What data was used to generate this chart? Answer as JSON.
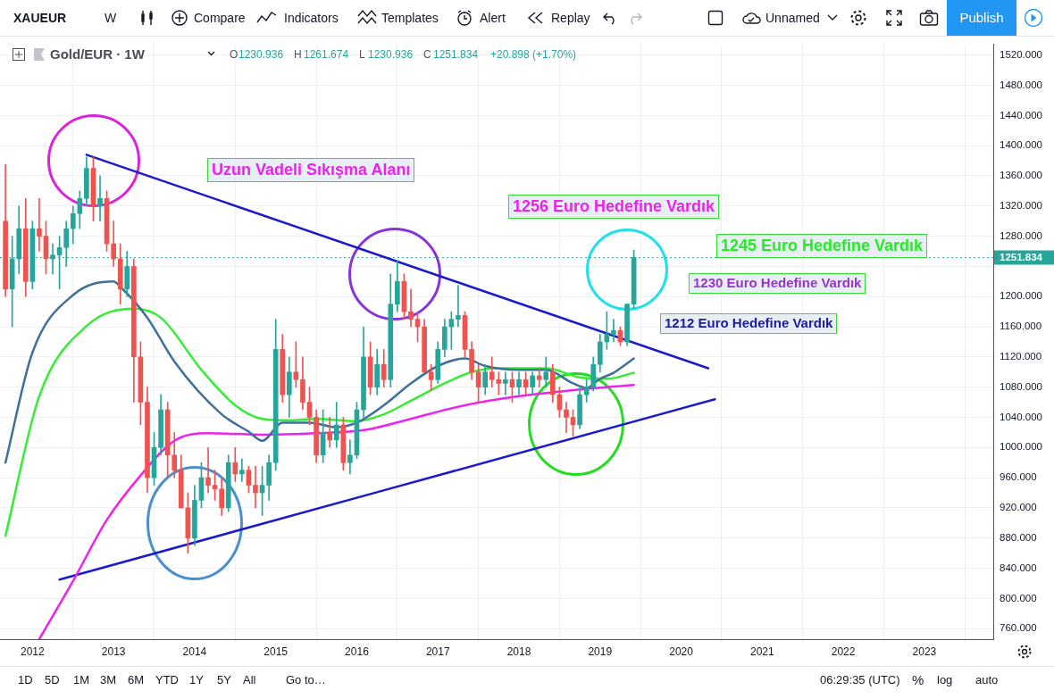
{
  "chart_data": {
    "type": "candlestick",
    "annotations": [
      "XAUEUR",
      "W",
      "Compare",
      "Indicators",
      "Templates",
      "Alert",
      "Replay",
      "Unnamed",
      "Publish",
      "Gold/EUR · 1W",
      "O",
      "1230.936",
      "H",
      "1261.674",
      "L",
      "1230.936",
      "C",
      "1251.834",
      "+20.898 (+1.70%)",
      "Uzun Vadeli Sıkışma Alanı",
      "1256 Euro Hedefine Vardık",
      "1245 Euro Hedefine Vardık",
      "1230 Euro Hedefine Vardık",
      "1212 Euro Hedefine Vardık",
      "1D",
      "5D",
      "1M",
      "3M",
      "6M",
      "YTD",
      "1Y",
      "5Y",
      "All",
      "Go to…",
      "06:29:35 (UTC)",
      "%",
      "log",
      "auto"
    ],
    "x": [
      "2011-09",
      "2011-10",
      "2011-11",
      "2011-12",
      "2012-01",
      "2012-02",
      "2012-03",
      "2012-04",
      "2012-05",
      "2012-06",
      "2012-07",
      "2012-08",
      "2012-09",
      "2012-10",
      "2012-11",
      "2012-12",
      "2013-01",
      "2013-02",
      "2013-03",
      "2013-04",
      "2013-05",
      "2013-06",
      "2013-07",
      "2013-08",
      "2013-09",
      "2013-10",
      "2013-11",
      "2013-12",
      "2014-01",
      "2014-02",
      "2014-03",
      "2014-04",
      "2014-05",
      "2014-06",
      "2014-07",
      "2014-08",
      "2014-09",
      "2014-10",
      "2014-11",
      "2014-12",
      "2015-01",
      "2015-02",
      "2015-03",
      "2015-04",
      "2015-05",
      "2015-06",
      "2015-07",
      "2015-08",
      "2015-09",
      "2015-10",
      "2015-11",
      "2015-12",
      "2016-01",
      "2016-02",
      "2016-03",
      "2016-04",
      "2016-05",
      "2016-06",
      "2016-07",
      "2016-08",
      "2016-09",
      "2016-10",
      "2016-11",
      "2016-12",
      "2017-01",
      "2017-02",
      "2017-03",
      "2017-04",
      "2017-05",
      "2017-06",
      "2017-07",
      "2017-08",
      "2017-09",
      "2017-10",
      "2017-11",
      "2017-12",
      "2018-01",
      "2018-02",
      "2018-03",
      "2018-04",
      "2018-05",
      "2018-06",
      "2018-07",
      "2018-08",
      "2018-09",
      "2018-10",
      "2018-11",
      "2018-12",
      "2019-01",
      "2019-02",
      "2019-03",
      "2019-04",
      "2019-05",
      "2019-06"
    ],
    "ohlc": [
      [
        1300,
        1375,
        1200,
        1210
      ],
      [
        1210,
        1280,
        1160,
        1250
      ],
      [
        1250,
        1320,
        1230,
        1290
      ],
      [
        1290,
        1330,
        1200,
        1220
      ],
      [
        1220,
        1300,
        1210,
        1290
      ],
      [
        1290,
        1330,
        1260,
        1280
      ],
      [
        1280,
        1300,
        1230,
        1250
      ],
      [
        1250,
        1270,
        1230,
        1255
      ],
      [
        1255,
        1280,
        1210,
        1265
      ],
      [
        1265,
        1300,
        1240,
        1290
      ],
      [
        1290,
        1320,
        1270,
        1310
      ],
      [
        1310,
        1340,
        1290,
        1330
      ],
      [
        1330,
        1385,
        1320,
        1370
      ],
      [
        1370,
        1385,
        1300,
        1320
      ],
      [
        1320,
        1360,
        1300,
        1330
      ],
      [
        1330,
        1340,
        1260,
        1270
      ],
      [
        1270,
        1300,
        1240,
        1250
      ],
      [
        1250,
        1270,
        1190,
        1210
      ],
      [
        1210,
        1260,
        1200,
        1240
      ],
      [
        1240,
        1250,
        1060,
        1120
      ],
      [
        1120,
        1140,
        1030,
        1060
      ],
      [
        1060,
        1080,
        940,
        960
      ],
      [
        960,
        1020,
        950,
        1000
      ],
      [
        1000,
        1070,
        990,
        1050
      ],
      [
        1050,
        1060,
        960,
        990
      ],
      [
        990,
        1020,
        960,
        970
      ],
      [
        970,
        990,
        920,
        920
      ],
      [
        920,
        940,
        860,
        880
      ],
      [
        880,
        950,
        870,
        930
      ],
      [
        930,
        980,
        920,
        960
      ],
      [
        960,
        1000,
        940,
        950
      ],
      [
        950,
        970,
        930,
        945
      ],
      [
        945,
        960,
        910,
        920
      ],
      [
        920,
        990,
        915,
        980
      ],
      [
        980,
        1000,
        955,
        965
      ],
      [
        965,
        985,
        955,
        970
      ],
      [
        970,
        975,
        940,
        950
      ],
      [
        950,
        975,
        920,
        940
      ],
      [
        940,
        975,
        910,
        950
      ],
      [
        950,
        990,
        930,
        980
      ],
      [
        980,
        1170,
        970,
        1130
      ],
      [
        1130,
        1150,
        1060,
        1070
      ],
      [
        1070,
        1120,
        1040,
        1100
      ],
      [
        1100,
        1140,
        1080,
        1090
      ],
      [
        1090,
        1120,
        1050,
        1060
      ],
      [
        1060,
        1080,
        1030,
        1040
      ],
      [
        1040,
        1050,
        980,
        990
      ],
      [
        990,
        1050,
        980,
        1020
      ],
      [
        1020,
        1040,
        1000,
        1010
      ],
      [
        1010,
        1060,
        1000,
        1030
      ],
      [
        1030,
        1040,
        970,
        980
      ],
      [
        980,
        1010,
        965,
        990
      ],
      [
        990,
        1060,
        985,
        1050
      ],
      [
        1050,
        1160,
        1040,
        1120
      ],
      [
        1120,
        1140,
        1070,
        1080
      ],
      [
        1080,
        1130,
        1070,
        1110
      ],
      [
        1110,
        1130,
        1080,
        1090
      ],
      [
        1090,
        1230,
        1080,
        1190
      ],
      [
        1190,
        1248,
        1180,
        1220
      ],
      [
        1220,
        1230,
        1170,
        1180
      ],
      [
        1180,
        1210,
        1160,
        1170
      ],
      [
        1170,
        1180,
        1140,
        1160
      ],
      [
        1160,
        1170,
        1100,
        1100
      ],
      [
        1100,
        1110,
        1075,
        1090
      ],
      [
        1090,
        1140,
        1085,
        1130
      ],
      [
        1130,
        1170,
        1120,
        1160
      ],
      [
        1160,
        1180,
        1130,
        1170
      ],
      [
        1170,
        1215,
        1160,
        1175
      ],
      [
        1175,
        1180,
        1120,
        1130
      ],
      [
        1130,
        1140,
        1090,
        1100
      ],
      [
        1100,
        1110,
        1060,
        1080
      ],
      [
        1080,
        1110,
        1070,
        1100
      ],
      [
        1100,
        1120,
        1080,
        1090
      ],
      [
        1090,
        1100,
        1070,
        1085
      ],
      [
        1085,
        1100,
        1070,
        1090
      ],
      [
        1090,
        1100,
        1060,
        1080
      ],
      [
        1080,
        1100,
        1070,
        1090
      ],
      [
        1090,
        1100,
        1070,
        1080
      ],
      [
        1080,
        1100,
        1070,
        1095
      ],
      [
        1095,
        1105,
        1080,
        1090
      ],
      [
        1090,
        1120,
        1080,
        1100
      ],
      [
        1100,
        1110,
        1060,
        1070
      ],
      [
        1070,
        1080,
        1040,
        1050
      ],
      [
        1050,
        1060,
        1020,
        1040
      ],
      [
        1040,
        1050,
        1015,
        1030
      ],
      [
        1030,
        1080,
        1025,
        1070
      ],
      [
        1070,
        1090,
        1060,
        1080
      ],
      [
        1080,
        1120,
        1075,
        1110
      ],
      [
        1110,
        1150,
        1100,
        1140
      ],
      [
        1140,
        1180,
        1130,
        1150
      ],
      [
        1150,
        1170,
        1140,
        1155
      ],
      [
        1155,
        1160,
        1135,
        1140
      ],
      [
        1140,
        1190,
        1135,
        1190
      ],
      [
        1190,
        1261.674,
        1185,
        1251.834
      ]
    ],
    "colors": [
      "#ef5350",
      "#26a69a",
      "#26a69a",
      "#ef5350",
      "#26a69a",
      "#ef5350",
      "#ef5350",
      "#26a69a",
      "#26a69a",
      "#26a69a",
      "#26a69a",
      "#26a69a",
      "#26a69a",
      "#ef5350",
      "#26a69a",
      "#ef5350",
      "#ef5350",
      "#ef5350",
      "#26a69a",
      "#ef5350",
      "#ef5350",
      "#ef5350",
      "#26a69a",
      "#26a69a",
      "#ef5350",
      "#ef5350",
      "#ef5350",
      "#ef5350",
      "#26a69a",
      "#26a69a",
      "#ef5350",
      "#ef5350",
      "#ef5350",
      "#26a69a",
      "#ef5350",
      "#26a69a",
      "#ef5350",
      "#ef5350",
      "#26a69a",
      "#26a69a",
      "#26a69a",
      "#ef5350",
      "#26a69a",
      "#ef5350",
      "#ef5350",
      "#ef5350",
      "#ef5350",
      "#26a69a",
      "#ef5350",
      "#26a69a",
      "#ef5350",
      "#26a69a",
      "#26a69a",
      "#26a69a",
      "#ef5350",
      "#26a69a",
      "#ef5350",
      "#26a69a",
      "#26a69a",
      "#ef5350",
      "#ef5350",
      "#ef5350",
      "#ef5350",
      "#ef5350",
      "#26a69a",
      "#26a69a",
      "#26a69a",
      "#26a69a",
      "#ef5350",
      "#ef5350",
      "#ef5350",
      "#26a69a",
      "#ef5350",
      "#ef5350",
      "#26a69a",
      "#ef5350",
      "#26a69a",
      "#ef5350",
      "#26a69a",
      "#ef5350",
      "#26a69a",
      "#ef5350",
      "#ef5350",
      "#ef5350",
      "#ef5350",
      "#26a69a",
      "#26a69a",
      "#26a69a",
      "#26a69a",
      "#26a69a",
      "#26a69a",
      "#ef5350",
      "#26a69a",
      "#26a69a"
    ],
    "series": [
      {
        "type": "line",
        "color": "#3f7099",
        "x": [
          "2011-09",
          "2012-01",
          "2012-07",
          "2013-01",
          "2013-02",
          "2013-06",
          "2013-10",
          "2014-05",
          "2014-09",
          "2014-11",
          "2015-02",
          "2015-06",
          "2015-10",
          "2016-01",
          "2016-05",
          "2016-09",
          "2017-01",
          "2017-05",
          "2017-08",
          "2018-01",
          "2018-05",
          "2018-09",
          "2018-11",
          "2019-01",
          "2019-03",
          "2019-04",
          "2019-06"
        ],
        "values": [
          980,
          1126,
          1202,
          1220,
          1213,
          1172,
          1114,
          1044,
          1021,
          1009,
          1033,
          1033,
          1027,
          1033,
          1056,
          1085,
          1108,
          1118,
          1108,
          1103,
          1103,
          1085,
          1079,
          1091,
          1099,
          1105,
          1118
        ]
      },
      {
        "type": "line",
        "color": "#33ee33",
        "x": [
          "2011-09",
          "2012-02",
          "2012-09",
          "2013-04",
          "2013-08",
          "2014-02",
          "2014-07",
          "2014-11",
          "2015-03",
          "2015-07",
          "2016-01",
          "2016-05",
          "2016-09",
          "2017-02",
          "2017-06",
          "2017-10",
          "2018-05",
          "2018-10",
          "2019-02",
          "2019-06"
        ],
        "values": [
          883,
          1068,
          1161,
          1184,
          1172,
          1103,
          1056,
          1038,
          1036,
          1038,
          1035,
          1044,
          1062,
          1085,
          1100,
          1105,
          1105,
          1093,
          1091,
          1099
        ]
      },
      {
        "type": "line",
        "color": "#ee22ee",
        "x": [
          "2012-02",
          "2012-07",
          "2012-12",
          "2013-05",
          "2013-10",
          "2014-03",
          "2014-11",
          "2015-07",
          "2016-02",
          "2016-09",
          "2017-05",
          "2018-01",
          "2018-09",
          "2019-06"
        ],
        "values": [
          746,
          823,
          904,
          963,
          1009,
          1019,
          1017,
          1019,
          1023,
          1038,
          1056,
          1068,
          1076,
          1083
        ]
      },
      {
        "type": "line",
        "color": "#1a1acc",
        "x": [
          "2012-09",
          "2020-05"
        ],
        "values": [
          1388,
          1105
        ]
      },
      {
        "type": "line",
        "color": "#1a1acc",
        "x": [
          "2012-05",
          "2020-06"
        ],
        "values": [
          825,
          1064
        ]
      }
    ],
    "xlim": [
      "2011-08-07",
      "2023-11-07"
    ],
    "xticks": [
      "2012",
      "2013",
      "2014",
      "2015",
      "2016",
      "2017",
      "2018",
      "2019",
      "2020",
      "2021",
      "2022",
      "2023"
    ],
    "ylim": [
      746,
      1534
    ],
    "yticks": [
      {
        "value": 760,
        "label": "760.000"
      },
      {
        "value": 800,
        "label": "800.000"
      },
      {
        "value": 840,
        "label": "840.000"
      },
      {
        "value": 880,
        "label": "880.000"
      },
      {
        "value": 920,
        "label": "920.000"
      },
      {
        "value": 960,
        "label": "960.000"
      },
      {
        "value": 1000,
        "label": "1000.000"
      },
      {
        "value": 1040,
        "label": "1040.000"
      },
      {
        "value": 1080,
        "label": "1080.000"
      },
      {
        "value": 1120,
        "label": "1120.000"
      },
      {
        "value": 1160,
        "label": "1160.000"
      },
      {
        "value": 1200,
        "label": "1200.000"
      },
      {
        "value": 1240,
        "label": null
      },
      {
        "value": 1280,
        "label": "1280.000"
      },
      {
        "value": 1320,
        "label": "1320.000"
      },
      {
        "value": 1360,
        "label": "1360.000"
      },
      {
        "value": 1400,
        "label": "1400.000"
      },
      {
        "value": 1440,
        "label": "1440.000"
      },
      {
        "value": 1480,
        "label": "1480.000"
      },
      {
        "value": 1520,
        "label": "1520.000"
      }
    ],
    "ref_lines": [
      {
        "axis": "y",
        "value": 1251.834,
        "label": "1251.834",
        "color": "#26a69a",
        "line_style": "dotted"
      }
    ],
    "grid": true,
    "legend": false,
    "marker": "none",
    "line_style": "solid"
  }
}
